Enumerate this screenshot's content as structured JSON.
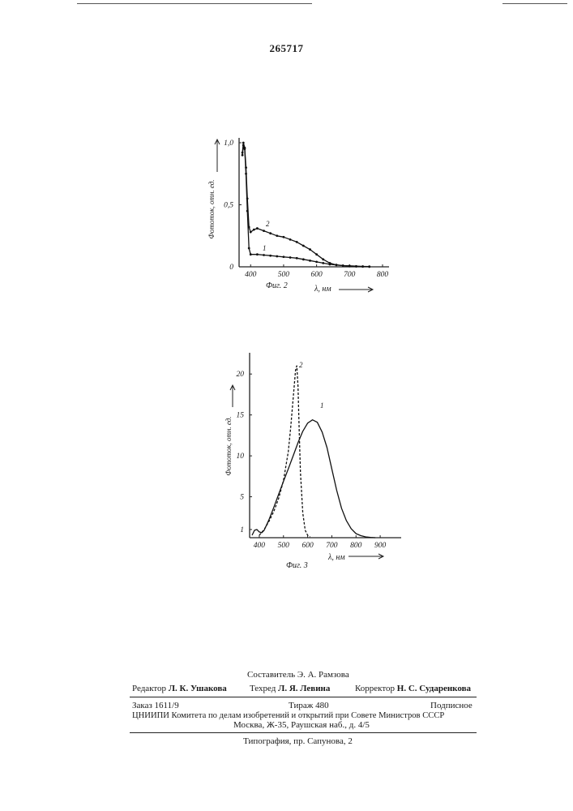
{
  "header": {
    "patent_number": "265717"
  },
  "chart_data": [
    {
      "type": "line",
      "caption": "Фиг. 2",
      "xlabel": "λ, нм",
      "ylabel": "Фототок, отн. ед.",
      "x_ticks": [
        "400",
        "500",
        "600",
        "700",
        "800"
      ],
      "y_ticks": [
        "0",
        "0,5",
        "1,0"
      ],
      "xlim": [
        365,
        800
      ],
      "ylim": [
        0,
        1.0
      ],
      "series": [
        {
          "name": "1",
          "x": [
            375,
            378,
            382,
            386,
            390,
            395,
            400,
            420,
            440,
            460,
            480,
            500,
            520,
            540,
            560,
            580,
            600,
            620,
            640,
            660,
            680,
            700,
            720,
            740,
            760
          ],
          "y": [
            0.9,
            0.98,
            0.95,
            0.75,
            0.45,
            0.15,
            0.1,
            0.1,
            0.095,
            0.09,
            0.085,
            0.08,
            0.075,
            0.07,
            0.06,
            0.05,
            0.04,
            0.03,
            0.02,
            0.015,
            0.01,
            0.008,
            0.005,
            0.003,
            0.002
          ]
        },
        {
          "name": "2",
          "x": [
            375,
            378,
            382,
            386,
            390,
            395,
            400,
            410,
            420,
            440,
            460,
            480,
            500,
            520,
            540,
            560,
            580,
            600,
            620,
            640,
            660,
            680,
            700,
            720,
            740,
            760
          ],
          "y": [
            0.92,
            1.0,
            0.96,
            0.8,
            0.55,
            0.32,
            0.28,
            0.3,
            0.31,
            0.29,
            0.27,
            0.25,
            0.24,
            0.22,
            0.2,
            0.17,
            0.14,
            0.1,
            0.06,
            0.03,
            0.015,
            0.01,
            0.005,
            0.003,
            0.002,
            0.001
          ]
        }
      ]
    },
    {
      "type": "line",
      "caption": "Фиг. 3",
      "xlabel": "λ, нм",
      "ylabel": "Фототок, отн. ед.",
      "x_ticks": [
        "400",
        "500",
        "600",
        "700",
        "800",
        "900"
      ],
      "y_ticks": [
        "1",
        "5",
        "10",
        "15",
        "20"
      ],
      "xlim": [
        360,
        960
      ],
      "ylim": [
        0,
        22
      ],
      "series": [
        {
          "name": "1",
          "style": "solid",
          "x": [
            370,
            380,
            390,
            400,
            410,
            420,
            440,
            460,
            480,
            500,
            520,
            540,
            560,
            580,
            600,
            620,
            640,
            660,
            680,
            700,
            720,
            740,
            760,
            780,
            800,
            820,
            840,
            860,
            880
          ],
          "y": [
            0.3,
            0.9,
            1.0,
            0.7,
            0.6,
            0.9,
            2.2,
            3.7,
            5.3,
            6.9,
            8.4,
            10.0,
            11.6,
            13.0,
            14.0,
            14.4,
            14.1,
            12.9,
            11.0,
            8.4,
            5.8,
            3.6,
            2.1,
            1.1,
            0.5,
            0.25,
            0.1,
            0.04,
            0.0
          ]
        },
        {
          "name": "2",
          "style": "dashed",
          "x": [
            400,
            420,
            440,
            460,
            480,
            500,
            520,
            530,
            540,
            550,
            555,
            560,
            565,
            570,
            580,
            590,
            600,
            610
          ],
          "y": [
            0.3,
            1.0,
            2.0,
            3.2,
            4.8,
            7.0,
            10.5,
            13.5,
            17.0,
            20.5,
            21.0,
            18.5,
            13.0,
            8.0,
            3.0,
            0.9,
            0.3,
            0.1
          ]
        }
      ]
    }
  ],
  "footer": {
    "compiler": "Составитель Э. А. Рамзова",
    "editor_label": "Редактор",
    "editor_name": "Л. К. Ушакова",
    "techred_label": "Техред",
    "techred_name": "Л. Я. Левина",
    "corrector_label": "Корректор",
    "corrector_name": "Н. С. Сударенкова",
    "order": "Заказ 1611/9",
    "circulation": "Тираж 480",
    "subscription": "Подписное",
    "institute": "ЦНИИПИ Комитета по делам изобретений и открытий при Совете Министров СССР",
    "address": "Москва, Ж-35, Раушская наб., д. 4/5",
    "printing": "Типография, пр. Сапунова, 2"
  }
}
